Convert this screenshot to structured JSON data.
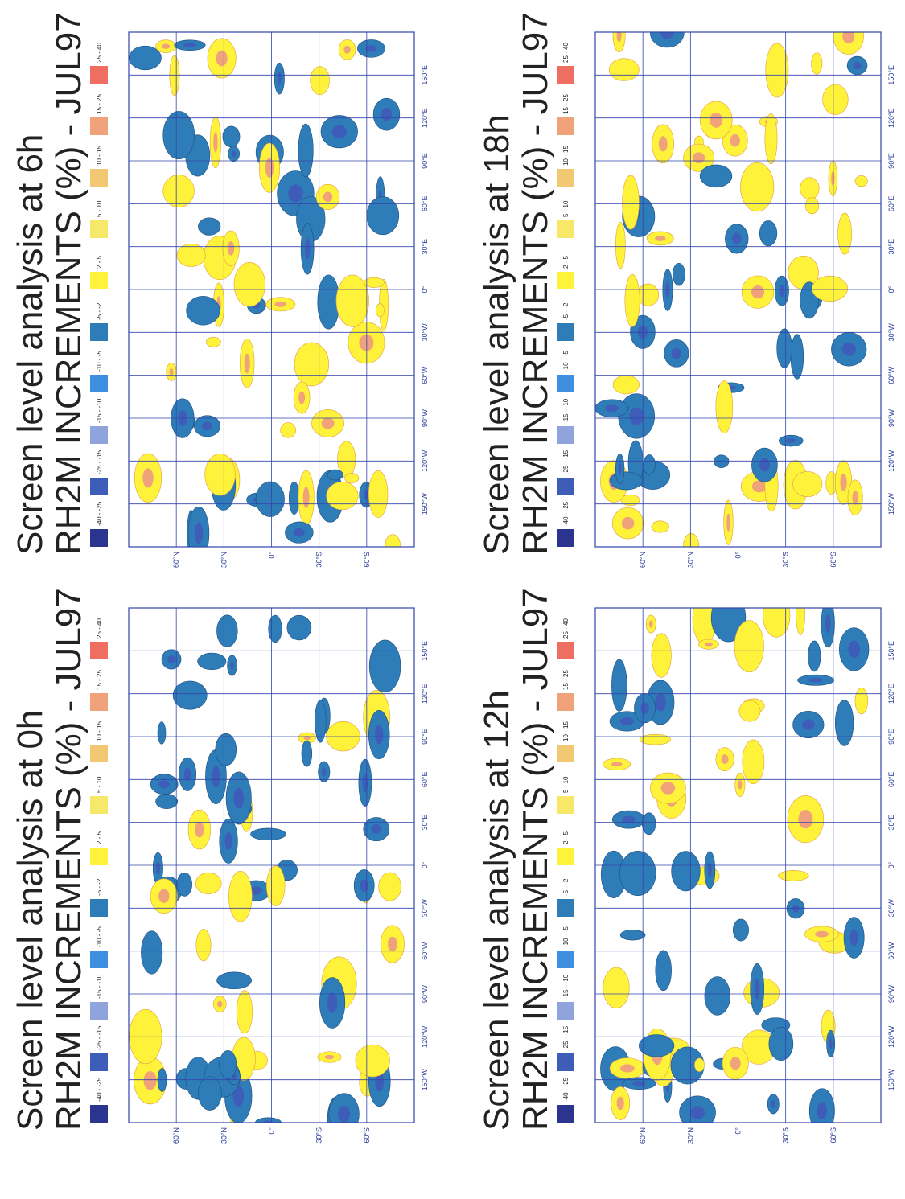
{
  "panels": [
    {
      "title": "Screen level analysis at 0h",
      "subtitle": "RH2M INCREMENTS (%)  -  JUL97"
    },
    {
      "title": "Screen level analysis at 6h",
      "subtitle": "RH2M INCREMENTS (%)  -  JUL97"
    },
    {
      "title": "Screen level analysis at 12h",
      "subtitle": "RH2M INCREMENTS (%)  -  JUL97"
    },
    {
      "title": "Screen level analysis at 18h",
      "subtitle": "RH2M INCREMENTS (%)  -  JUL97"
    }
  ],
  "legend": [
    {
      "label": "-40 - -25",
      "color": "#2b3590"
    },
    {
      "label": "-25 - -15",
      "color": "#3d5db8"
    },
    {
      "label": "-15 - -10",
      "color": "#8fa4dc"
    },
    {
      "label": "-10 - -5",
      "color": "#3f8fe0"
    },
    {
      "label": "-5 - -2",
      "color": "#2f7db8"
    },
    {
      "label": "2 - 5",
      "color": "#fff23a"
    },
    {
      "label": "5 - 10",
      "color": "#f8e86a"
    },
    {
      "label": "10 - 15",
      "color": "#f3c873"
    },
    {
      "label": "15 - 25",
      "color": "#f0a27a"
    },
    {
      "label": "25 - 40",
      "color": "#ee6f62"
    }
  ],
  "lat_labels": [
    "60°N",
    "30°N",
    "0°",
    "30°S",
    "60°S"
  ],
  "lon_labels": [
    "150°W",
    "120°W",
    "90°W",
    "60°W",
    "30°W",
    "0°",
    "30°E",
    "60°E",
    "90°E",
    "120°E",
    "150°E"
  ]
}
